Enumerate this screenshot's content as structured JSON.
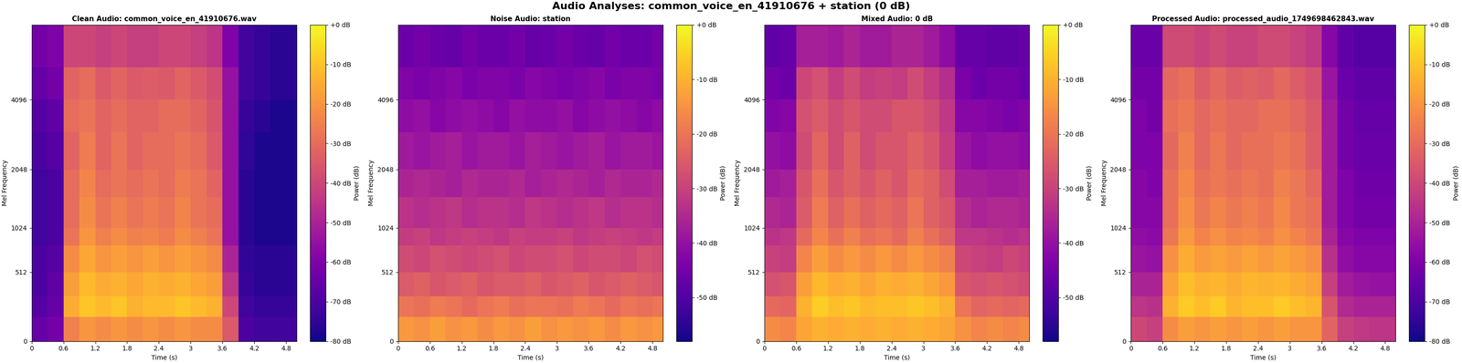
{
  "title": "Audio Analyses: common_voice_en_41910676 + station (0 dB)",
  "chart_data": [
    {
      "type": "heatmap",
      "title": "Clean Audio: common_voice_en_41910676.wav",
      "x_label": "Time (s)",
      "y_label": "Mel Frequency",
      "x_edges": [
        0,
        0.3,
        0.6,
        0.9,
        1.2,
        1.5,
        1.8,
        2.1,
        2.4,
        2.7,
        3.0,
        3.3,
        3.6,
        3.9,
        4.2,
        4.5,
        4.8,
        5.0
      ],
      "y_edges": [
        0,
        150,
        300,
        512,
        800,
        1024,
        1500,
        2048,
        3000,
        4096,
        5500,
        8000
      ],
      "cells": [
        [
          -65,
          -62,
          -25,
          -20,
          -22,
          -20,
          -22,
          -20,
          -22,
          -20,
          -22,
          -22,
          -35,
          -70,
          -72,
          -72,
          -72
        ],
        [
          -68,
          -65,
          -15,
          -10,
          -12,
          -10,
          -14,
          -12,
          -12,
          -10,
          -12,
          -14,
          -40,
          -72,
          -74,
          -74,
          -74
        ],
        [
          -70,
          -66,
          -18,
          -12,
          -15,
          -14,
          -16,
          -14,
          -15,
          -14,
          -16,
          -18,
          -45,
          -74,
          -76,
          -76,
          -76
        ],
        [
          -70,
          -68,
          -22,
          -16,
          -20,
          -18,
          -20,
          -18,
          -20,
          -18,
          -20,
          -22,
          -50,
          -75,
          -76,
          -76,
          -76
        ],
        [
          -72,
          -70,
          -28,
          -20,
          -25,
          -22,
          -25,
          -24,
          -26,
          -22,
          -25,
          -28,
          -55,
          -76,
          -78,
          -78,
          -78
        ],
        [
          -72,
          -70,
          -30,
          -22,
          -28,
          -25,
          -28,
          -26,
          -28,
          -24,
          -28,
          -30,
          -55,
          -76,
          -78,
          -78,
          -78
        ],
        [
          -72,
          -70,
          -30,
          -24,
          -30,
          -28,
          -30,
          -28,
          -30,
          -26,
          -28,
          -32,
          -55,
          -76,
          -78,
          -78,
          -78
        ],
        [
          -70,
          -68,
          -32,
          -26,
          -32,
          -28,
          -32,
          -30,
          -30,
          -28,
          -30,
          -35,
          -55,
          -75,
          -78,
          -78,
          -78
        ],
        [
          -68,
          -66,
          -30,
          -28,
          -32,
          -30,
          -32,
          -32,
          -30,
          -30,
          -32,
          -36,
          -55,
          -74,
          -76,
          -78,
          -78
        ],
        [
          -65,
          -62,
          -32,
          -30,
          -35,
          -32,
          -35,
          -34,
          -35,
          -32,
          -35,
          -38,
          -55,
          -72,
          -74,
          -76,
          -76
        ],
        [
          -62,
          -60,
          -40,
          -40,
          -42,
          -40,
          -42,
          -42,
          -40,
          -40,
          -42,
          -45,
          -60,
          -72,
          -74,
          -76,
          -76
        ]
      ],
      "xlim": [
        0,
        5.0
      ],
      "ylim": [
        0,
        8000
      ],
      "xticks": [
        0,
        0.6,
        1.2,
        1.8,
        2.4,
        3,
        3.6,
        4.2,
        4.8
      ],
      "yticks": [
        0,
        512,
        1024,
        2048,
        4096
      ],
      "colorbar": {
        "label": "Power (dB)",
        "range": [
          -80,
          0
        ],
        "ticks": [
          {
            "value": 0,
            "label": "+0 dB"
          },
          {
            "value": -10,
            "label": "-10 dB"
          },
          {
            "value": -20,
            "label": "-20 dB"
          },
          {
            "value": -30,
            "label": "-30 dB"
          },
          {
            "value": -40,
            "label": "-40 dB"
          },
          {
            "value": -50,
            "label": "-50 dB"
          },
          {
            "value": -60,
            "label": "-60 dB"
          },
          {
            "value": -70,
            "label": "-70 dB"
          },
          {
            "value": -80,
            "label": "-80 dB"
          }
        ]
      }
    },
    {
      "type": "heatmap",
      "title": "Noise Audio: station",
      "x_label": "Time (s)",
      "y_label": "Mel Frequency",
      "x_edges": [
        0,
        0.3,
        0.6,
        0.9,
        1.2,
        1.5,
        1.8,
        2.1,
        2.4,
        2.7,
        3.0,
        3.3,
        3.6,
        3.9,
        4.2,
        4.5,
        4.8,
        5.0
      ],
      "y_edges": [
        0,
        150,
        300,
        512,
        800,
        1024,
        1500,
        2048,
        3000,
        4096,
        5500,
        8000
      ],
      "cells": [
        [
          -14,
          -15,
          -13,
          -15,
          -14,
          -16,
          -14,
          -15,
          -13,
          -15,
          -14,
          -15,
          -14,
          -16,
          -14,
          -15,
          -14
        ],
        [
          -20,
          -21,
          -19,
          -20,
          -22,
          -20,
          -19,
          -21,
          -20,
          -20,
          -21,
          -19,
          -20,
          -22,
          -20,
          -21,
          -20
        ],
        [
          -25,
          -24,
          -26,
          -25,
          -24,
          -26,
          -25,
          -25,
          -24,
          -26,
          -25,
          -24,
          -26,
          -25,
          -24,
          -25,
          -26
        ],
        [
          -28,
          -29,
          -27,
          -28,
          -29,
          -28,
          -27,
          -29,
          -28,
          -28,
          -27,
          -29,
          -28,
          -28,
          -29,
          -27,
          -28
        ],
        [
          -31,
          -30,
          -32,
          -31,
          -30,
          -31,
          -32,
          -30,
          -31,
          -31,
          -30,
          -32,
          -31,
          -30,
          -31,
          -32,
          -31
        ],
        [
          -33,
          -34,
          -33,
          -32,
          -34,
          -33,
          -33,
          -34,
          -32,
          -33,
          -34,
          -33,
          -32,
          -34,
          -33,
          -33,
          -34
        ],
        [
          -36,
          -35,
          -36,
          -37,
          -35,
          -36,
          -36,
          -35,
          -37,
          -36,
          -35,
          -36,
          -37,
          -35,
          -36,
          -36,
          -35
        ],
        [
          -38,
          -39,
          -38,
          -37,
          -39,
          -38,
          -38,
          -39,
          -37,
          -38,
          -39,
          -38,
          -37,
          -39,
          -38,
          -38,
          -39
        ],
        [
          -41,
          -40,
          -42,
          -41,
          -40,
          -41,
          -42,
          -40,
          -41,
          -41,
          -40,
          -42,
          -41,
          -40,
          -41,
          -42,
          -41
        ],
        [
          -43,
          -44,
          -43,
          -42,
          -44,
          -43,
          -43,
          -44,
          -42,
          -43,
          -44,
          -43,
          -42,
          -44,
          -43,
          -43,
          -44
        ],
        [
          -46,
          -45,
          -46,
          -47,
          -45,
          -46,
          -46,
          -45,
          -47,
          -46,
          -45,
          -46,
          -47,
          -45,
          -46,
          -46,
          -45
        ]
      ],
      "xlim": [
        0,
        5.0
      ],
      "ylim": [
        0,
        8000
      ],
      "xticks": [
        0,
        0.6,
        1.2,
        1.8,
        2.4,
        3,
        3.6,
        4.2,
        4.8
      ],
      "yticks": [
        0,
        512,
        1024,
        2048,
        4096
      ],
      "colorbar": {
        "label": "Power (dB)",
        "range": [
          -58,
          0
        ],
        "ticks": [
          {
            "value": 0,
            "label": "+0 dB"
          },
          {
            "value": -10,
            "label": "-10 dB"
          },
          {
            "value": -20,
            "label": "-20 dB"
          },
          {
            "value": -30,
            "label": "-30 dB"
          },
          {
            "value": -40,
            "label": "-40 dB"
          },
          {
            "value": -50,
            "label": "-50 dB"
          }
        ]
      }
    },
    {
      "type": "heatmap",
      "title": "Mixed Audio: 0 dB",
      "x_label": "Time (s)",
      "y_label": "Mel Frequency",
      "x_edges": [
        0,
        0.3,
        0.6,
        0.9,
        1.2,
        1.5,
        1.8,
        2.1,
        2.4,
        2.7,
        3.0,
        3.3,
        3.6,
        3.9,
        4.2,
        4.5,
        4.8,
        5.0
      ],
      "y_edges": [
        0,
        150,
        300,
        512,
        800,
        1024,
        1500,
        2048,
        3000,
        4096,
        5500,
        8000
      ],
      "cells": [
        [
          -16,
          -17,
          -12,
          -10,
          -11,
          -10,
          -11,
          -10,
          -11,
          -10,
          -11,
          -12,
          -15,
          -17,
          -16,
          -17,
          -16
        ],
        [
          -22,
          -23,
          -10,
          -6,
          -8,
          -7,
          -9,
          -8,
          -8,
          -7,
          -8,
          -10,
          -20,
          -23,
          -22,
          -23,
          -22
        ],
        [
          -27,
          -26,
          -13,
          -9,
          -11,
          -10,
          -12,
          -10,
          -11,
          -10,
          -12,
          -14,
          -26,
          -27,
          -26,
          -27,
          -28
        ],
        [
          -30,
          -31,
          -17,
          -13,
          -16,
          -14,
          -16,
          -14,
          -16,
          -14,
          -16,
          -18,
          -29,
          -30,
          -31,
          -29,
          -30
        ],
        [
          -33,
          -32,
          -22,
          -17,
          -21,
          -18,
          -21,
          -20,
          -22,
          -18,
          -21,
          -24,
          -32,
          -32,
          -33,
          -34,
          -33
        ],
        [
          -35,
          -36,
          -25,
          -19,
          -24,
          -21,
          -24,
          -22,
          -24,
          -20,
          -24,
          -26,
          -34,
          -36,
          -35,
          -35,
          -36
        ],
        [
          -38,
          -37,
          -26,
          -21,
          -26,
          -24,
          -26,
          -24,
          -26,
          -22,
          -24,
          -28,
          -37,
          -37,
          -38,
          -38,
          -37
        ],
        [
          -40,
          -41,
          -28,
          -23,
          -28,
          -24,
          -28,
          -26,
          -26,
          -24,
          -26,
          -31,
          -39,
          -41,
          -40,
          -40,
          -41
        ],
        [
          -43,
          -42,
          -27,
          -25,
          -28,
          -26,
          -28,
          -28,
          -26,
          -26,
          -28,
          -32,
          -42,
          -42,
          -43,
          -44,
          -43
        ],
        [
          -45,
          -46,
          -29,
          -27,
          -31,
          -28,
          -31,
          -30,
          -31,
          -28,
          -31,
          -34,
          -44,
          -46,
          -45,
          -45,
          -46
        ],
        [
          -48,
          -47,
          -37,
          -37,
          -38,
          -36,
          -38,
          -38,
          -36,
          -36,
          -38,
          -41,
          -47,
          -47,
          -48,
          -48,
          -47
        ]
      ],
      "xlim": [
        0,
        5.0
      ],
      "ylim": [
        0,
        8000
      ],
      "xticks": [
        0,
        0.6,
        1.2,
        1.8,
        2.4,
        3,
        3.6,
        4.2,
        4.8
      ],
      "yticks": [
        0,
        512,
        1024,
        2048,
        4096
      ],
      "colorbar": {
        "label": "Power (dB)",
        "range": [
          -58,
          0
        ],
        "ticks": [
          {
            "value": 0,
            "label": "+0 dB"
          },
          {
            "value": -10,
            "label": "-10 dB"
          },
          {
            "value": -20,
            "label": "-20 dB"
          },
          {
            "value": -30,
            "label": "-30 dB"
          },
          {
            "value": -40,
            "label": "-40 dB"
          },
          {
            "value": -50,
            "label": "-50 dB"
          }
        ]
      }
    },
    {
      "type": "heatmap",
      "title": "Processed Audio: processed_audio_1749698462843.wav",
      "x_label": "Time (s)",
      "y_label": "Mel Frequency",
      "x_edges": [
        0,
        0.3,
        0.6,
        0.9,
        1.2,
        1.5,
        1.8,
        2.1,
        2.4,
        2.7,
        3.0,
        3.3,
        3.6,
        3.9,
        4.2,
        4.5,
        4.8,
        5.0
      ],
      "y_edges": [
        0,
        150,
        300,
        512,
        800,
        1024,
        1500,
        2048,
        3000,
        4096,
        5500,
        8000
      ],
      "cells": [
        [
          -40,
          -42,
          -22,
          -18,
          -20,
          -18,
          -20,
          -18,
          -20,
          -18,
          -20,
          -20,
          -32,
          -42,
          -44,
          -45,
          -45
        ],
        [
          -45,
          -46,
          -14,
          -9,
          -11,
          -9,
          -13,
          -11,
          -11,
          -9,
          -11,
          -13,
          -36,
          -48,
          -50,
          -50,
          -50
        ],
        [
          -50,
          -50,
          -17,
          -11,
          -14,
          -13,
          -15,
          -13,
          -14,
          -13,
          -15,
          -17,
          -42,
          -52,
          -54,
          -55,
          -55
        ],
        [
          -54,
          -55,
          -21,
          -15,
          -19,
          -17,
          -19,
          -17,
          -19,
          -17,
          -19,
          -21,
          -46,
          -56,
          -58,
          -58,
          -58
        ],
        [
          -56,
          -57,
          -27,
          -19,
          -24,
          -21,
          -24,
          -23,
          -25,
          -21,
          -24,
          -27,
          -50,
          -58,
          -60,
          -60,
          -60
        ],
        [
          -58,
          -58,
          -29,
          -21,
          -27,
          -24,
          -27,
          -25,
          -27,
          -23,
          -27,
          -29,
          -52,
          -60,
          -62,
          -62,
          -62
        ],
        [
          -58,
          -60,
          -29,
          -23,
          -29,
          -27,
          -29,
          -27,
          -29,
          -25,
          -27,
          -31,
          -52,
          -60,
          -63,
          -63,
          -63
        ],
        [
          -60,
          -60,
          -31,
          -25,
          -31,
          -27,
          -31,
          -29,
          -29,
          -27,
          -29,
          -34,
          -52,
          -62,
          -64,
          -64,
          -64
        ],
        [
          -60,
          -62,
          -29,
          -27,
          -31,
          -29,
          -31,
          -31,
          -29,
          -29,
          -31,
          -35,
          -52,
          -62,
          -65,
          -65,
          -65
        ],
        [
          -62,
          -62,
          -31,
          -29,
          -34,
          -31,
          -34,
          -33,
          -34,
          -31,
          -34,
          -37,
          -54,
          -64,
          -66,
          -66,
          -66
        ],
        [
          -64,
          -64,
          -39,
          -39,
          -41,
          -39,
          -41,
          -41,
          -39,
          -39,
          -41,
          -44,
          -58,
          -66,
          -68,
          -68,
          -68
        ]
      ],
      "xlim": [
        0,
        5.0
      ],
      "ylim": [
        0,
        8000
      ],
      "xticks": [
        0,
        0.6,
        1.2,
        1.8,
        2.4,
        3,
        3.6,
        4.2,
        4.8
      ],
      "yticks": [
        0,
        512,
        1024,
        2048,
        4096
      ],
      "colorbar": {
        "label": "Power (dB)",
        "range": [
          -80,
          0
        ],
        "ticks": [
          {
            "value": 0,
            "label": "+0 dB"
          },
          {
            "value": -10,
            "label": "-10 dB"
          },
          {
            "value": -20,
            "label": "-20 dB"
          },
          {
            "value": -30,
            "label": "-30 dB"
          },
          {
            "value": -40,
            "label": "-40 dB"
          },
          {
            "value": -50,
            "label": "-50 dB"
          },
          {
            "value": -60,
            "label": "-60 dB"
          },
          {
            "value": -70,
            "label": "-70 dB"
          },
          {
            "value": -80,
            "label": "-80 dB"
          }
        ]
      }
    }
  ]
}
